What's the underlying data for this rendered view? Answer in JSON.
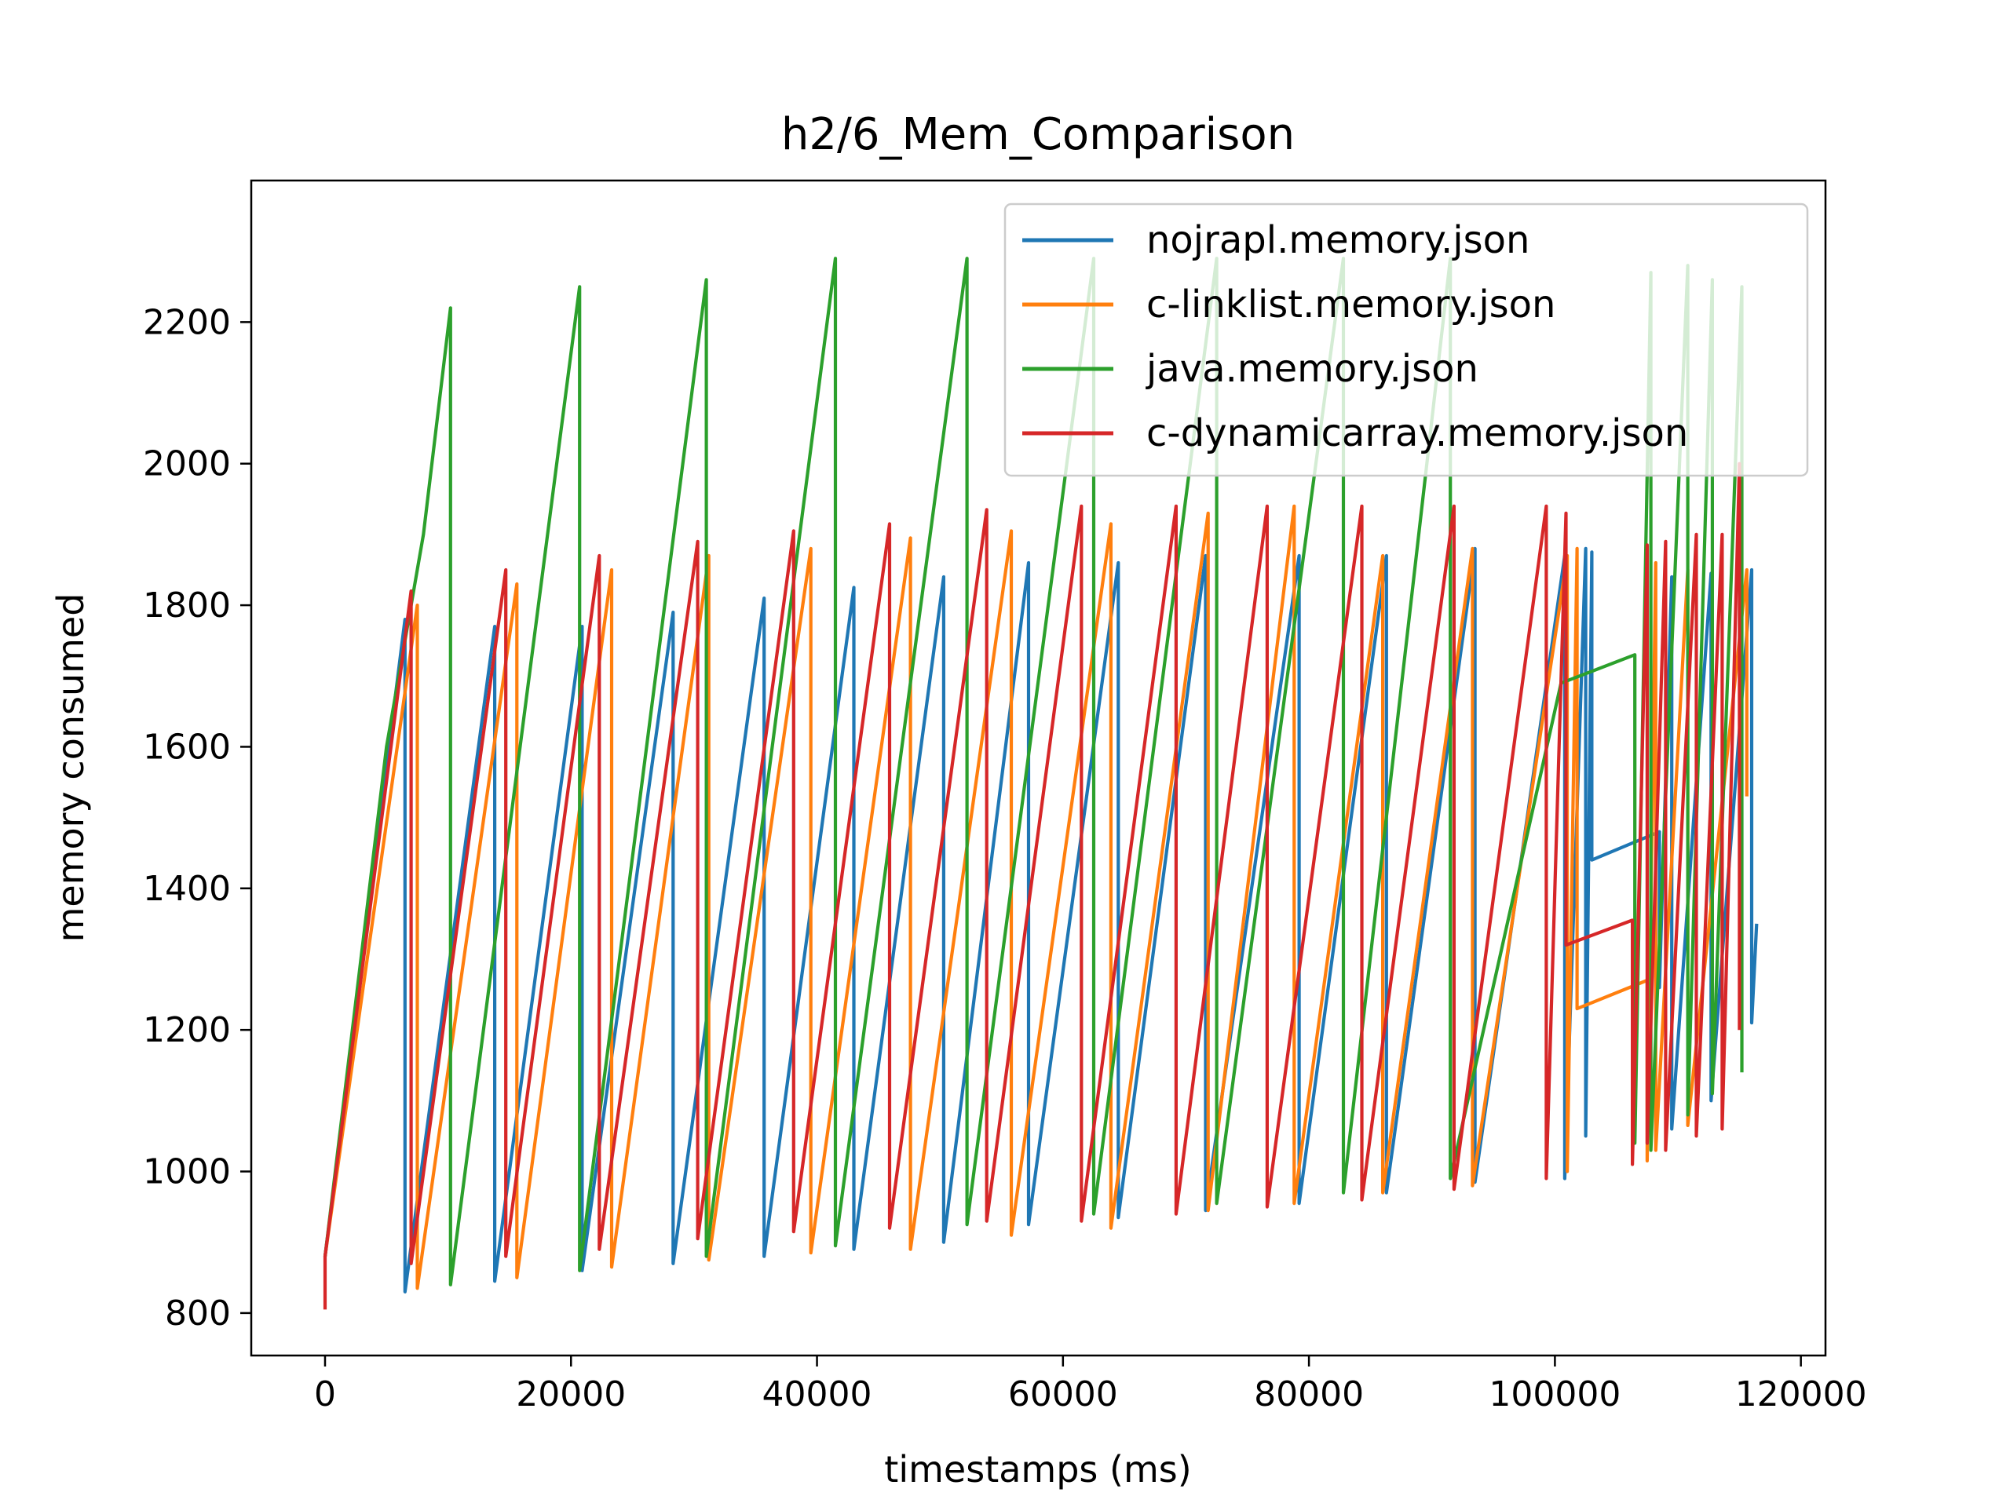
{
  "chart_data": {
    "type": "line",
    "title": "h2/6_Mem_Comparison",
    "xlabel": "timestamps (ms)",
    "ylabel": "memory consumed",
    "xlim": [
      -6000,
      122000
    ],
    "ylim": [
      740,
      2400
    ],
    "xticks": [
      0,
      20000,
      40000,
      60000,
      80000,
      100000,
      120000
    ],
    "yticks": [
      800,
      1000,
      1200,
      1400,
      1600,
      1800,
      2000,
      2200
    ],
    "grid": false,
    "legend_position": "top-right",
    "series": [
      {
        "name": "nojrapl.memory.json",
        "color": "#1f77b4",
        "points": [
          [
            0,
            880
          ],
          [
            6500,
            1780
          ],
          [
            6500,
            830
          ],
          [
            13800,
            1770
          ],
          [
            13800,
            845
          ],
          [
            20900,
            1770
          ],
          [
            20900,
            860
          ],
          [
            28300,
            1790
          ],
          [
            28300,
            870
          ],
          [
            35700,
            1810
          ],
          [
            35700,
            880
          ],
          [
            43000,
            1825
          ],
          [
            43000,
            890
          ],
          [
            50300,
            1840
          ],
          [
            50300,
            900
          ],
          [
            57200,
            1860
          ],
          [
            57200,
            925
          ],
          [
            64500,
            1860
          ],
          [
            64500,
            935
          ],
          [
            71600,
            1870
          ],
          [
            71600,
            945
          ],
          [
            79200,
            1870
          ],
          [
            79200,
            955
          ],
          [
            86300,
            1870
          ],
          [
            86300,
            970
          ],
          [
            93500,
            1880
          ],
          [
            93500,
            985
          ],
          [
            100800,
            1870
          ],
          [
            100800,
            990
          ],
          [
            102500,
            1880
          ],
          [
            102500,
            1050
          ],
          [
            103000,
            1875
          ],
          [
            103000,
            1440
          ],
          [
            108500,
            1480
          ],
          [
            108500,
            1260
          ],
          [
            109500,
            1840
          ],
          [
            109500,
            1060
          ],
          [
            112700,
            1845
          ],
          [
            112700,
            1100
          ],
          [
            116000,
            1850
          ],
          [
            116000,
            1210
          ],
          [
            116400,
            1350
          ]
        ]
      },
      {
        "name": "c-linklist.memory.json",
        "color": "#ff7f0e",
        "points": [
          [
            0,
            880
          ],
          [
            7500,
            1800
          ],
          [
            7500,
            835
          ],
          [
            15600,
            1830
          ],
          [
            15600,
            850
          ],
          [
            23300,
            1850
          ],
          [
            23300,
            865
          ],
          [
            31200,
            1870
          ],
          [
            31200,
            875
          ],
          [
            39500,
            1880
          ],
          [
            39500,
            885
          ],
          [
            47600,
            1895
          ],
          [
            47600,
            890
          ],
          [
            55800,
            1905
          ],
          [
            55800,
            910
          ],
          [
            63900,
            1915
          ],
          [
            63900,
            920
          ],
          [
            71800,
            1930
          ],
          [
            71800,
            945
          ],
          [
            78800,
            1940
          ],
          [
            78800,
            955
          ],
          [
            86000,
            1870
          ],
          [
            86000,
            970
          ],
          [
            93300,
            1880
          ],
          [
            93300,
            980
          ],
          [
            101000,
            1870
          ],
          [
            101000,
            1000
          ],
          [
            101800,
            1880
          ],
          [
            101800,
            1230
          ],
          [
            107500,
            1270
          ],
          [
            107500,
            1015
          ],
          [
            108200,
            1860
          ],
          [
            108200,
            1030
          ],
          [
            110800,
            1850
          ],
          [
            110800,
            1065
          ],
          [
            115600,
            1850
          ],
          [
            115600,
            1530
          ]
        ]
      },
      {
        "name": "java.memory.json",
        "color": "#2ca02c",
        "points": [
          [
            0,
            880
          ],
          [
            5000,
            1600
          ],
          [
            8000,
            1900
          ],
          [
            10200,
            2220
          ],
          [
            10200,
            840
          ],
          [
            20700,
            2250
          ],
          [
            20700,
            860
          ],
          [
            31000,
            2260
          ],
          [
            31000,
            880
          ],
          [
            41500,
            2290
          ],
          [
            41500,
            895
          ],
          [
            52200,
            2290
          ],
          [
            52200,
            925
          ],
          [
            62500,
            2290
          ],
          [
            62500,
            940
          ],
          [
            72500,
            2290
          ],
          [
            72500,
            955
          ],
          [
            82800,
            2290
          ],
          [
            82800,
            970
          ],
          [
            91500,
            2290
          ],
          [
            91500,
            990
          ],
          [
            100500,
            1690
          ],
          [
            106500,
            1730
          ],
          [
            106500,
            1040
          ],
          [
            107800,
            2270
          ],
          [
            107800,
            1030
          ],
          [
            110800,
            2280
          ],
          [
            110800,
            1080
          ],
          [
            112800,
            2260
          ],
          [
            112800,
            1110
          ],
          [
            115200,
            2250
          ],
          [
            115200,
            1140
          ]
        ]
      },
      {
        "name": "c-dynamicarray.memory.json",
        "color": "#d62728",
        "points": [
          [
            0,
            805
          ],
          [
            0,
            880
          ],
          [
            7000,
            1820
          ],
          [
            7000,
            870
          ],
          [
            14700,
            1850
          ],
          [
            14700,
            880
          ],
          [
            22300,
            1870
          ],
          [
            22300,
            890
          ],
          [
            30300,
            1890
          ],
          [
            30300,
            905
          ],
          [
            38100,
            1905
          ],
          [
            38100,
            915
          ],
          [
            45900,
            1915
          ],
          [
            45900,
            920
          ],
          [
            53800,
            1935
          ],
          [
            53800,
            930
          ],
          [
            61500,
            1940
          ],
          [
            61500,
            930
          ],
          [
            69200,
            1940
          ],
          [
            69200,
            940
          ],
          [
            76600,
            1940
          ],
          [
            76600,
            950
          ],
          [
            84300,
            1940
          ],
          [
            84300,
            960
          ],
          [
            91800,
            1940
          ],
          [
            91800,
            975
          ],
          [
            99300,
            1940
          ],
          [
            99300,
            990
          ],
          [
            100900,
            1930
          ],
          [
            100900,
            1320
          ],
          [
            106300,
            1355
          ],
          [
            106300,
            1010
          ],
          [
            107500,
            1885
          ],
          [
            107500,
            1040
          ],
          [
            109000,
            1890
          ],
          [
            109000,
            1030
          ],
          [
            111500,
            1900
          ],
          [
            111500,
            1050
          ],
          [
            113600,
            1900
          ],
          [
            113600,
            1060
          ],
          [
            115000,
            2000
          ],
          [
            115000,
            1200
          ]
        ]
      }
    ]
  }
}
